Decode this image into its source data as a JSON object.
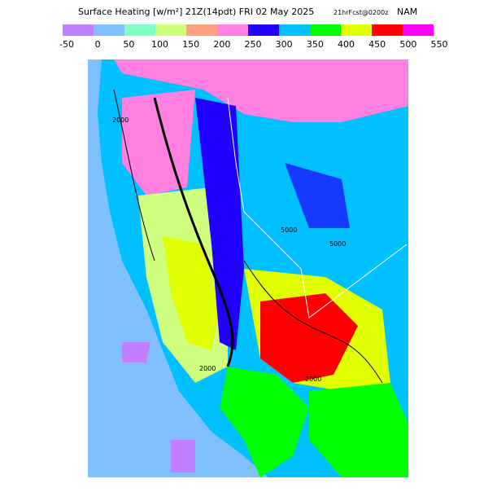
{
  "header": {
    "title": "Surface Heating [w/m²] 21Z(14pdt) FRI 02 May 2025",
    "run": "21hrFcst@0200z",
    "model": "NAM"
  },
  "colorbar": {
    "labels": [
      "-50",
      "0",
      "50",
      "100",
      "150",
      "200",
      "250",
      "300",
      "350",
      "400",
      "450",
      "500",
      "550"
    ],
    "colors": [
      "#c080ff",
      "#80c0ff",
      "#80ffc0",
      "#d0ff80",
      "#ffa080",
      "#ff80e0",
      "#2000ff",
      "#00c0ff",
      "#00ff00",
      "#e0ff00",
      "#ff0000",
      "#ff00ff"
    ]
  },
  "contour_labels": [
    "2000",
    "5000",
    "5000",
    "2000",
    "2000"
  ]
}
